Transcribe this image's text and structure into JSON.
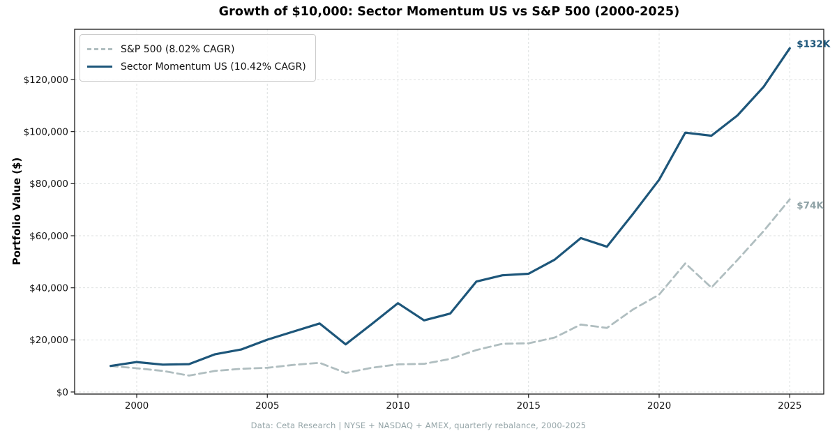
{
  "title": "Growth of $10,000: Sector Momentum US vs S&P 500 (2000-2025)",
  "ylabel": "Portfolio Value ($)",
  "footer": "Data: Ceta Research | NYSE + NASDAQ + AMEX, quarterly rebalance, 2000-2025",
  "colors": {
    "sp500_line": "#b0bec0",
    "sp500_label": "#8fa2a6",
    "momentum_line": "#1d567a",
    "momentum_label": "#1d567a",
    "grid": "#dcdfdf",
    "axis": "#1a1a1a",
    "footer_text": "#95a5a8"
  },
  "chart_data": {
    "type": "line",
    "x": [
      1999,
      2000,
      2001,
      2002,
      2003,
      2004,
      2005,
      2006,
      2007,
      2008,
      2009,
      2010,
      2011,
      2012,
      2013,
      2014,
      2015,
      2016,
      2017,
      2018,
      2019,
      2020,
      2021,
      2022,
      2023,
      2024,
      2025
    ],
    "x_ticks": [
      2000,
      2005,
      2010,
      2015,
      2020,
      2025
    ],
    "x_tick_labels": [
      "2000",
      "2005",
      "2010",
      "2015",
      "2020",
      "2025"
    ],
    "y_ticks": [
      0,
      20000,
      40000,
      60000,
      80000,
      100000,
      120000
    ],
    "y_tick_labels": [
      "$0",
      "$20,000",
      "$40,000",
      "$60,000",
      "$80,000",
      "$100,000",
      "$120,000"
    ],
    "xlim": [
      1997.6,
      2026.3
    ],
    "ylim": [
      -800,
      139300
    ],
    "grid": true,
    "legend_position": "upper left",
    "series": [
      {
        "name": "S&P 500 (8.02% CAGR)",
        "style": "dashed",
        "color": "#b0bec0",
        "end_label": "$74K",
        "end_label_color": "#8fa2a6",
        "end_label_dy": 9,
        "values": [
          10000,
          9100,
          8100,
          6300,
          8100,
          8900,
          9300,
          10400,
          11200,
          7300,
          9300,
          10600,
          10800,
          12700,
          16100,
          18500,
          18700,
          20900,
          25900,
          24600,
          31700,
          37400,
          49400,
          40100,
          50700,
          61800,
          74000
        ]
      },
      {
        "name": "Sector Momentum US (10.42% CAGR)",
        "style": "solid",
        "color": "#1d567a",
        "end_label": "$132K",
        "end_label_color": "#1d567a",
        "end_label_dy": -6,
        "values": [
          10000,
          11500,
          10500,
          10700,
          14500,
          16300,
          20100,
          23200,
          26300,
          18300,
          26100,
          34100,
          27500,
          30100,
          42400,
          44800,
          45400,
          50800,
          59100,
          55800,
          68400,
          81500,
          99600,
          98400,
          106200,
          117200,
          132000
        ]
      }
    ]
  }
}
